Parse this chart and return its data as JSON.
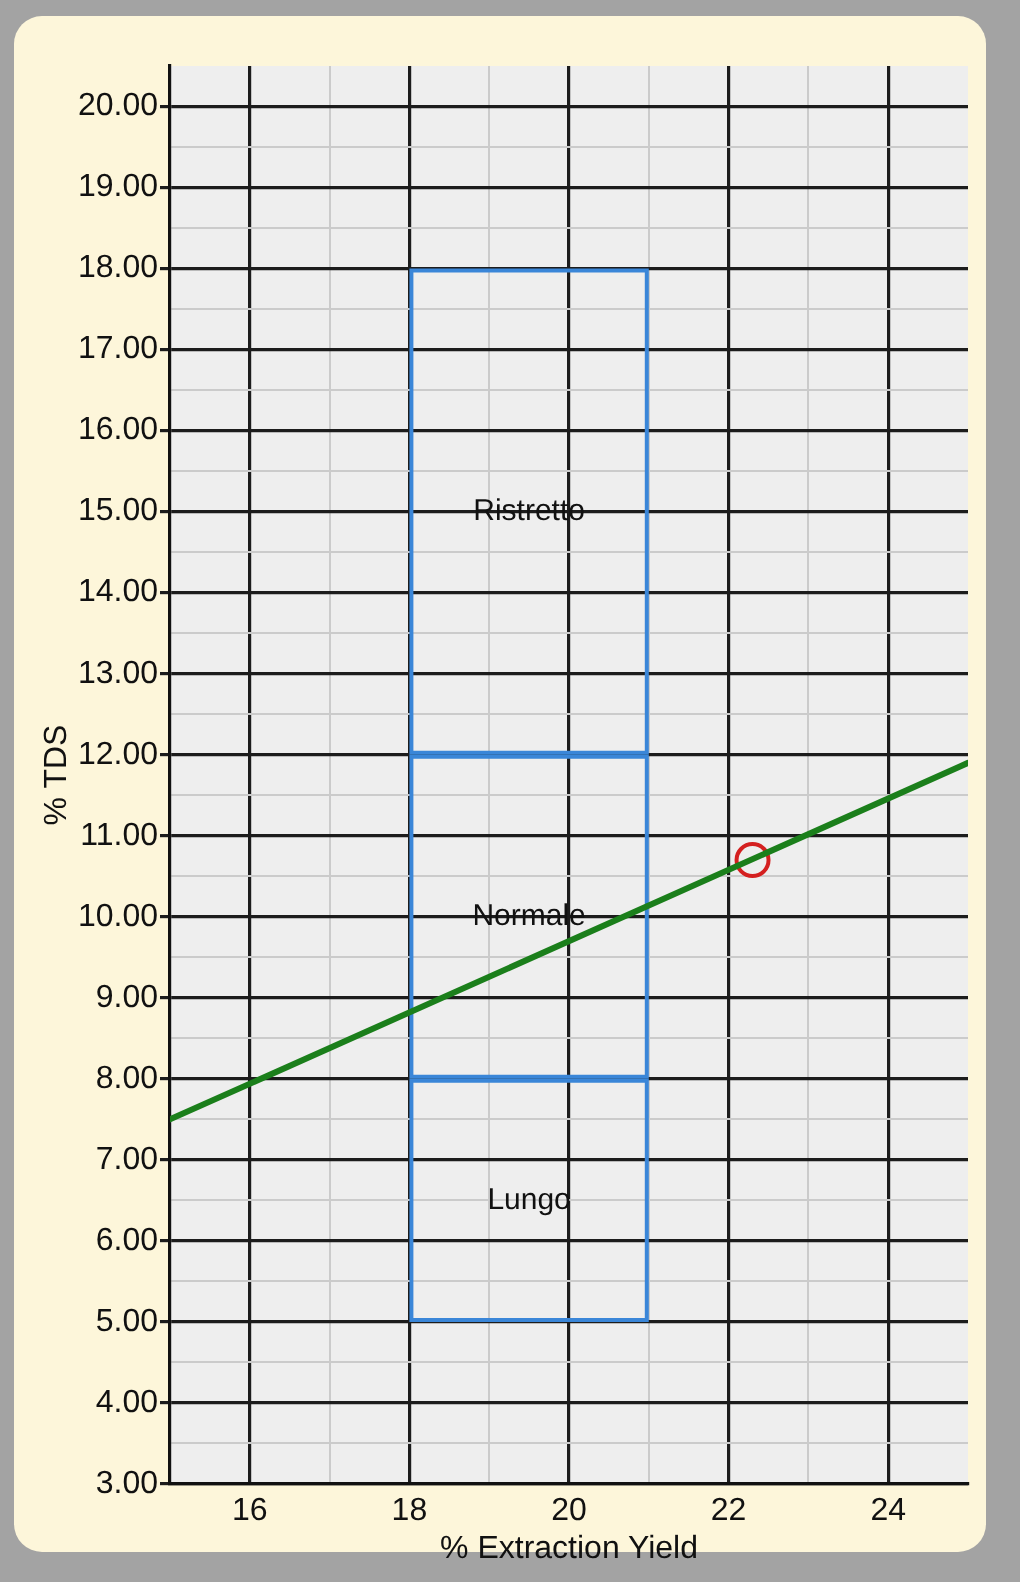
{
  "chart_data": {
    "type": "line",
    "xlabel": "% Extraction Yield",
    "ylabel": "% TDS",
    "xlim": [
      15,
      25
    ],
    "xticks": [
      16,
      {
        "value": 17,
        "label": null
      },
      18,
      {
        "value": 19,
        "label": null
      },
      20,
      {
        "value": 21,
        "label": null
      },
      22,
      {
        "value": 23,
        "label": null
      },
      24
    ],
    "ylim": [
      3,
      20.5
    ],
    "yticks": [
      {
        "value": 3,
        "label": "3.00"
      },
      {
        "value": 3.5,
        "label": null
      },
      {
        "value": 4,
        "label": "4.00"
      },
      {
        "value": 4.5,
        "label": null
      },
      {
        "value": 5,
        "label": "5.00"
      },
      {
        "value": 5.5,
        "label": null
      },
      {
        "value": 6,
        "label": "6.00"
      },
      {
        "value": 6.5,
        "label": null
      },
      {
        "value": 7,
        "label": "7.00"
      },
      {
        "value": 7.5,
        "label": null
      },
      {
        "value": 8,
        "label": "8.00"
      },
      {
        "value": 8.5,
        "label": null
      },
      {
        "value": 9,
        "label": "9.00"
      },
      {
        "value": 9.5,
        "label": null
      },
      {
        "value": 10,
        "label": "10.00"
      },
      {
        "value": 10.5,
        "label": null
      },
      {
        "value": 11,
        "label": "11.00"
      },
      {
        "value": 11.5,
        "label": null
      },
      {
        "value": 12,
        "label": "12.00"
      },
      {
        "value": 12.5,
        "label": null
      },
      {
        "value": 13,
        "label": "13.00"
      },
      {
        "value": 13.5,
        "label": null
      },
      {
        "value": 14,
        "label": "14.00"
      },
      {
        "value": 14.5,
        "label": null
      },
      {
        "value": 15,
        "label": "15.00"
      },
      {
        "value": 15.5,
        "label": null
      },
      {
        "value": 16,
        "label": "16.00"
      },
      {
        "value": 16.5,
        "label": null
      },
      {
        "value": 17,
        "label": "17.00"
      },
      {
        "value": 17.5,
        "label": null
      },
      {
        "value": 18,
        "label": "18.00"
      },
      {
        "value": 18.5,
        "label": null
      },
      {
        "value": 19,
        "label": "19.00"
      },
      {
        "value": 19.5,
        "label": null
      },
      {
        "value": 20,
        "label": "20.00"
      }
    ],
    "bins": [
      18,
      21
    ],
    "series": [
      {
        "type": "histogram",
        "name": "Lungo",
        "color": "#3a86d8",
        "base": [
          5
        ],
        "values": [
          3
        ]
      },
      {
        "type": "histogram",
        "name": "Normale",
        "color": "#3a86d8",
        "base": [
          8
        ],
        "values": [
          4
        ]
      },
      {
        "type": "histogram",
        "name": "Ristretto",
        "color": "#3a86d8",
        "base": [
          12
        ],
        "values": [
          6
        ]
      },
      {
        "color": "#1b7f1b",
        "x": [
          15,
          25
        ],
        "values": [
          7.5,
          11.9
        ]
      },
      {
        "type": "scatter",
        "color": "#d42020",
        "marker": "circle",
        "x": [
          22.3
        ],
        "values": [
          10.7
        ]
      }
    ],
    "grid": true,
    "legend": false
  }
}
